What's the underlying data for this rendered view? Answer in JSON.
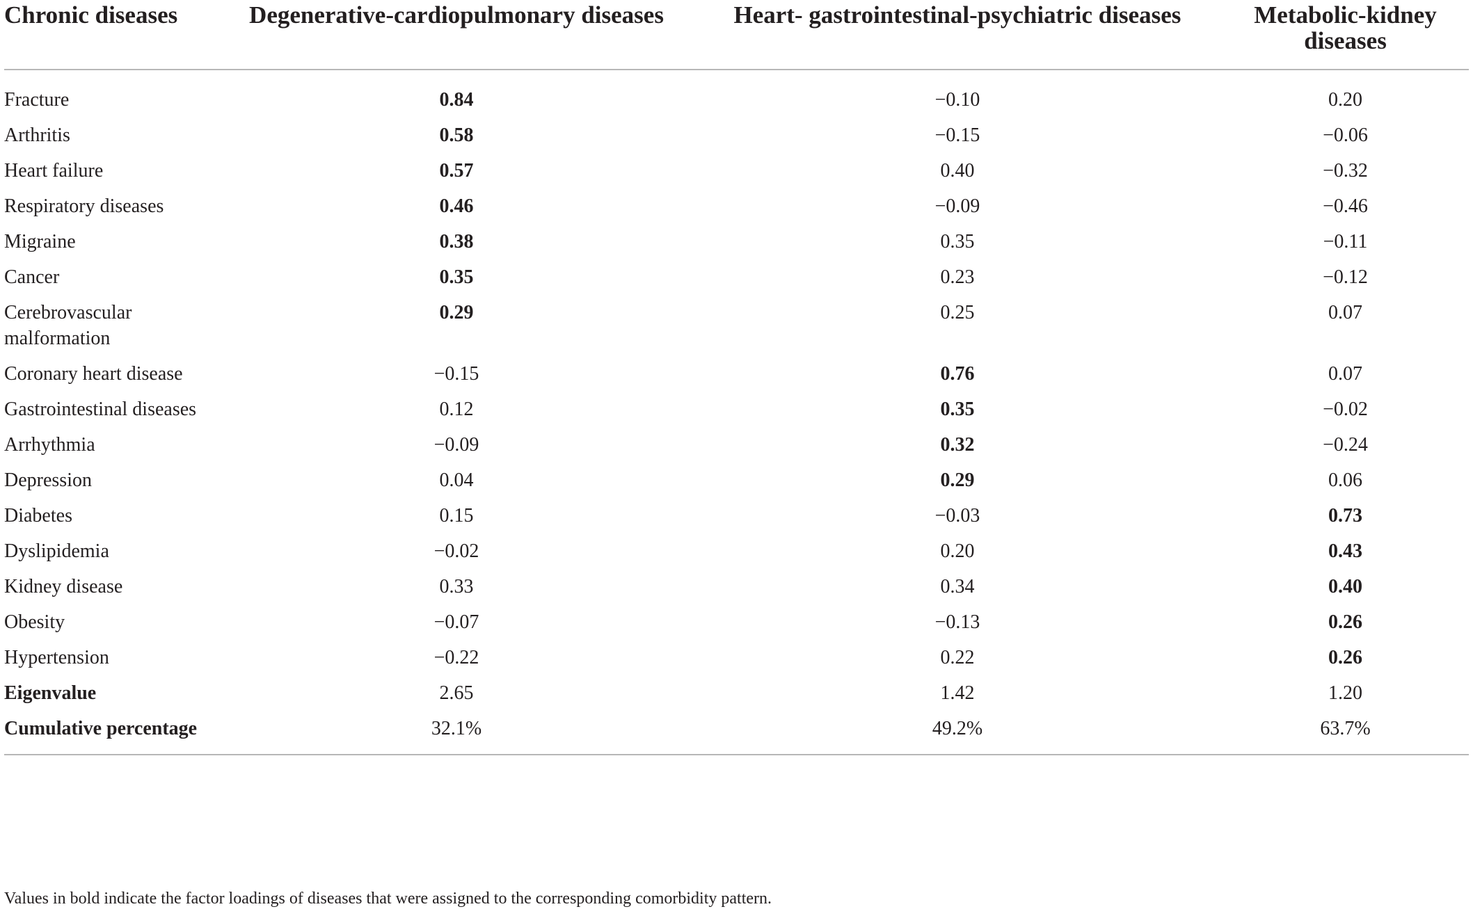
{
  "table": {
    "headers": [
      "Chronic diseases",
      "Degenerative-cardiopulmonary diseases",
      "Heart- gastrointestinal-psychiatric diseases",
      "Metabolic-kidney diseases"
    ],
    "rows": [
      {
        "label": "Fracture",
        "values": [
          "0.84",
          "−0.10",
          "0.20"
        ],
        "bold": [
          true,
          false,
          false
        ]
      },
      {
        "label": "Arthritis",
        "values": [
          "0.58",
          "−0.15",
          "−0.06"
        ],
        "bold": [
          true,
          false,
          false
        ]
      },
      {
        "label": "Heart failure",
        "values": [
          "0.57",
          "0.40",
          "−0.32"
        ],
        "bold": [
          true,
          false,
          false
        ]
      },
      {
        "label": "Respiratory diseases",
        "values": [
          "0.46",
          "−0.09",
          "−0.46"
        ],
        "bold": [
          true,
          false,
          false
        ]
      },
      {
        "label": "Migraine",
        "values": [
          "0.38",
          "0.35",
          "−0.11"
        ],
        "bold": [
          true,
          false,
          false
        ]
      },
      {
        "label": "Cancer",
        "values": [
          "0.35",
          "0.23",
          "−0.12"
        ],
        "bold": [
          true,
          false,
          false
        ]
      },
      {
        "label": "Cerebrovascular malformation",
        "values": [
          "0.29",
          "0.25",
          "0.07"
        ],
        "bold": [
          true,
          false,
          false
        ]
      },
      {
        "label": "Coronary heart disease",
        "values": [
          "−0.15",
          "0.76",
          "0.07"
        ],
        "bold": [
          false,
          true,
          false
        ]
      },
      {
        "label": "Gastrointestinal diseases",
        "values": [
          "0.12",
          "0.35",
          "−0.02"
        ],
        "bold": [
          false,
          true,
          false
        ]
      },
      {
        "label": "Arrhythmia",
        "values": [
          "−0.09",
          "0.32",
          "−0.24"
        ],
        "bold": [
          false,
          true,
          false
        ]
      },
      {
        "label": "Depression",
        "values": [
          "0.04",
          "0.29",
          "0.06"
        ],
        "bold": [
          false,
          true,
          false
        ]
      },
      {
        "label": "Diabetes",
        "values": [
          "0.15",
          "−0.03",
          "0.73"
        ],
        "bold": [
          false,
          false,
          true
        ]
      },
      {
        "label": "Dyslipidemia",
        "values": [
          "−0.02",
          "0.20",
          "0.43"
        ],
        "bold": [
          false,
          false,
          true
        ]
      },
      {
        "label": "Kidney disease",
        "values": [
          "0.33",
          "0.34",
          "0.40"
        ],
        "bold": [
          false,
          false,
          true
        ]
      },
      {
        "label": "Obesity",
        "values": [
          "−0.07",
          "−0.13",
          "0.26"
        ],
        "bold": [
          false,
          false,
          true
        ]
      },
      {
        "label": "Hypertension",
        "values": [
          "−0.22",
          "0.22",
          "0.26"
        ],
        "bold": [
          false,
          false,
          true
        ]
      },
      {
        "label": "Eigenvalue",
        "values": [
          "2.65",
          "1.42",
          "1.20"
        ],
        "bold": [
          false,
          false,
          false
        ],
        "label_bold": true
      },
      {
        "label": "Cumulative percentage",
        "values": [
          "32.1%",
          "49.2%",
          "63.7%"
        ],
        "bold": [
          false,
          false,
          false
        ],
        "label_bold": true
      }
    ]
  },
  "footnote": "Values in bold indicate the factor loadings of diseases that were assigned to the corresponding comorbidity pattern.",
  "colors": {
    "text": "#231f20",
    "rule": "#b7b7b7"
  }
}
